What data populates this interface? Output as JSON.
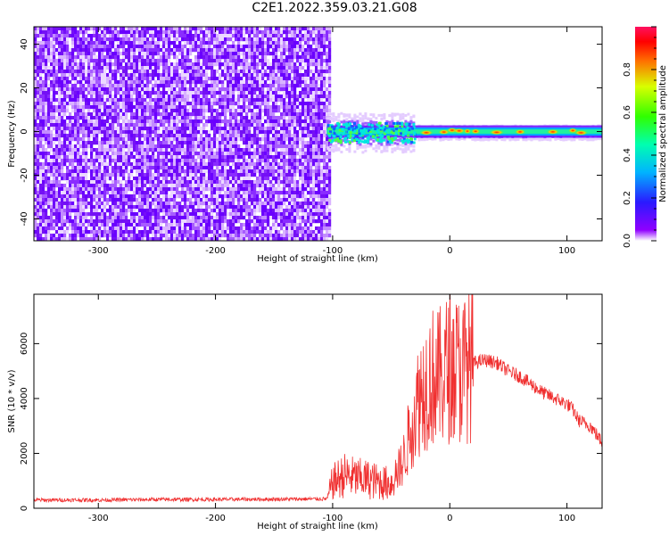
{
  "title": "C2E1.2022.359.03.21.G08",
  "chart_data": [
    {
      "type": "heatmap",
      "xlabel": "Height of straight line (km)",
      "ylabel": "Frequency (Hz)",
      "xlim": [
        -355,
        130
      ],
      "ylim": [
        -50,
        48
      ],
      "xticks": [
        -300,
        -200,
        -100,
        0,
        100
      ],
      "yticks": [
        -40,
        -20,
        0,
        20,
        40
      ],
      "noise_region_x": [
        -355,
        -103
      ],
      "signal_band": {
        "x": [
          -105,
          130
        ],
        "center_frequency_hz": 0
      },
      "colorbar": {
        "label": "Normalized spectral amplitude",
        "range": [
          0.0,
          1.0
        ],
        "ticks": [
          0.0,
          0.2,
          0.4,
          0.6,
          0.8
        ]
      }
    },
    {
      "type": "line",
      "xlabel": "Height of straight line (km)",
      "ylabel": "SNR (10 * v/v)",
      "xlim": [
        -355,
        130
      ],
      "ylim": [
        0,
        7800
      ],
      "xticks": [
        -300,
        -200,
        -100,
        0,
        100
      ],
      "yticks": [
        0,
        2000,
        4000,
        6000
      ],
      "color": "#f03030",
      "series": [
        {
          "x": [
            -355,
            -300,
            -250,
            -200,
            -150,
            -105,
            -100,
            -90,
            -80,
            -70,
            -60,
            -50,
            -40,
            -35,
            -30,
            -25,
            -20,
            -15,
            -10,
            -5,
            0,
            5,
            10,
            15,
            20,
            30,
            40,
            50,
            60,
            70,
            80,
            90,
            100,
            105,
            110,
            115,
            120,
            125,
            130
          ],
          "values": [
            300,
            300,
            320,
            320,
            330,
            340,
            950,
            1200,
            1100,
            1050,
            950,
            900,
            1700,
            2600,
            3500,
            4200,
            4600,
            4800,
            4700,
            4900,
            5200,
            5100,
            5000,
            5200,
            5300,
            5400,
            5300,
            5000,
            4800,
            4500,
            4200,
            4000,
            3800,
            3600,
            3200,
            3100,
            3000,
            2700,
            2400
          ]
        }
      ]
    }
  ]
}
